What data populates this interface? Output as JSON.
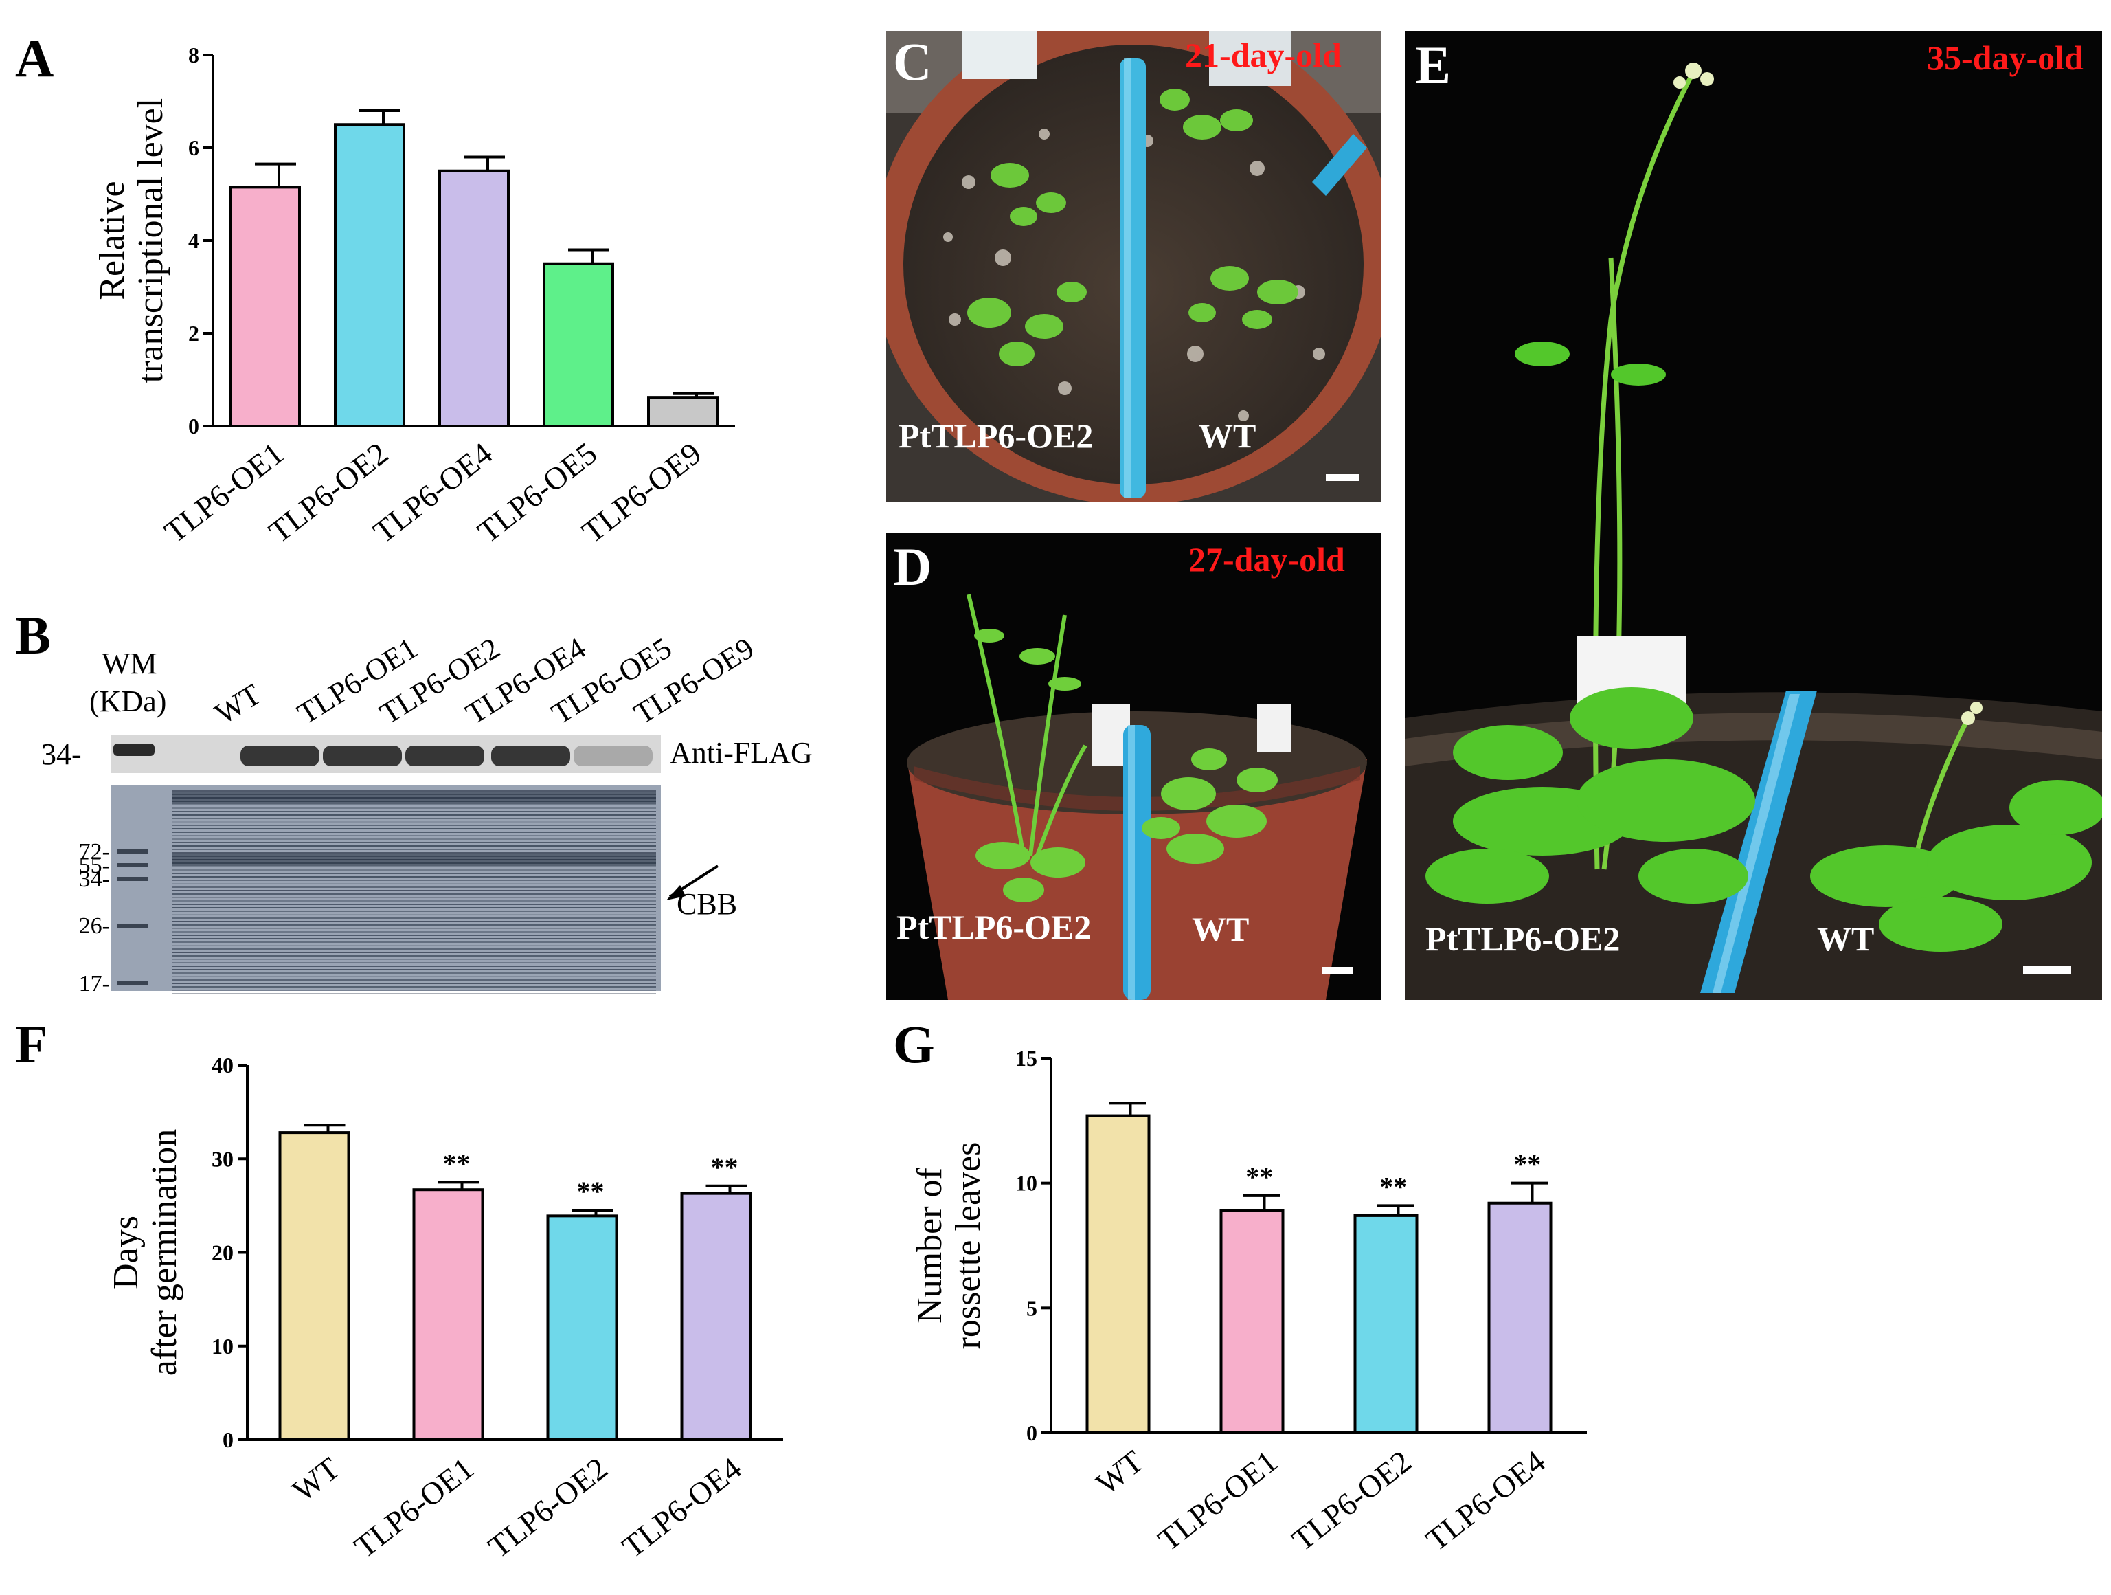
{
  "panels": {
    "A": "A",
    "B": "B",
    "C": "C",
    "D": "D",
    "E": "E",
    "F": "F",
    "G": "G"
  },
  "colors": {
    "pink": "#F7AFCB",
    "cyan": "#6FD8EA",
    "lavender": "#C9BDEA",
    "green": "#5EF08A",
    "gray": "#C8C8C8",
    "wheat": "#F2E2AA",
    "photo_red": "#ff1a1a"
  },
  "chart_data": [
    {
      "panel": "A",
      "type": "bar",
      "categories": [
        "TLP6-OE1",
        "TLP6-OE2",
        "TLP6-OE4",
        "TLP6-OE5",
        "TLP6-OE9"
      ],
      "values": [
        5.15,
        6.5,
        5.5,
        3.5,
        0.62
      ],
      "errors": [
        0.5,
        0.3,
        0.3,
        0.3,
        0.08
      ],
      "bar_colors": [
        "#F7AFCB",
        "#6FD8EA",
        "#C9BDEA",
        "#5EF08A",
        "#C8C8C8"
      ],
      "ylabel": [
        "Relative",
        "transcriptional level"
      ],
      "xlabel": "",
      "ylim": [
        0,
        8
      ],
      "yticks": [
        0,
        2,
        4,
        6,
        8
      ],
      "significance": [
        "",
        "",
        "",
        "",
        ""
      ]
    },
    {
      "panel": "F",
      "type": "bar",
      "categories": [
        "WT",
        "TLP6-OE1",
        "TLP6-OE2",
        "TLP6-OE4"
      ],
      "values": [
        32.8,
        26.7,
        23.9,
        26.3
      ],
      "errors": [
        0.8,
        0.8,
        0.6,
        0.8
      ],
      "bar_colors": [
        "#F2E2AA",
        "#F7AFCB",
        "#6FD8EA",
        "#C9BDEA"
      ],
      "ylabel": [
        "Days",
        "after germination"
      ],
      "xlabel": "",
      "ylim": [
        0,
        40
      ],
      "yticks": [
        0,
        10,
        20,
        30,
        40
      ],
      "significance": [
        "",
        "**",
        "**",
        "**"
      ]
    },
    {
      "panel": "G",
      "type": "bar",
      "categories": [
        "WT",
        "TLP6-OE1",
        "TLP6-OE2",
        "TLP6-OE4"
      ],
      "values": [
        12.7,
        8.9,
        8.7,
        9.2
      ],
      "errors": [
        0.5,
        0.6,
        0.4,
        0.8
      ],
      "bar_colors": [
        "#F2E2AA",
        "#F7AFCB",
        "#6FD8EA",
        "#C9BDEA"
      ],
      "ylabel": [
        "Number of",
        "rossette leaves"
      ],
      "xlabel": "",
      "ylim": [
        0,
        15
      ],
      "yticks": [
        0,
        5,
        10,
        15
      ],
      "significance": [
        "",
        "**",
        "**",
        "**"
      ]
    }
  ],
  "blot": {
    "wm_label": [
      "WM",
      "(KDa)"
    ],
    "lanes": [
      "WT",
      "TLP6-OE1",
      "TLP6-OE2",
      "TLP6-OE4",
      "TLP6-OE5",
      "TLP6-OE9"
    ],
    "flag_marker": "34-",
    "flag_label": "Anti-FLAG",
    "cbb_label": "CBB",
    "cbb_markers": [
      "72-",
      "55-",
      "34-",
      "26-",
      "17-"
    ]
  },
  "photos": {
    "C": {
      "age": "21-day-old",
      "left": "PtTLP6-OE2",
      "right": "WT"
    },
    "D": {
      "age": "27-day-old",
      "left": "PtTLP6-OE2",
      "right": "WT"
    },
    "E": {
      "age": "35-day-old",
      "left": "PtTLP6-OE2",
      "right": "WT"
    }
  }
}
